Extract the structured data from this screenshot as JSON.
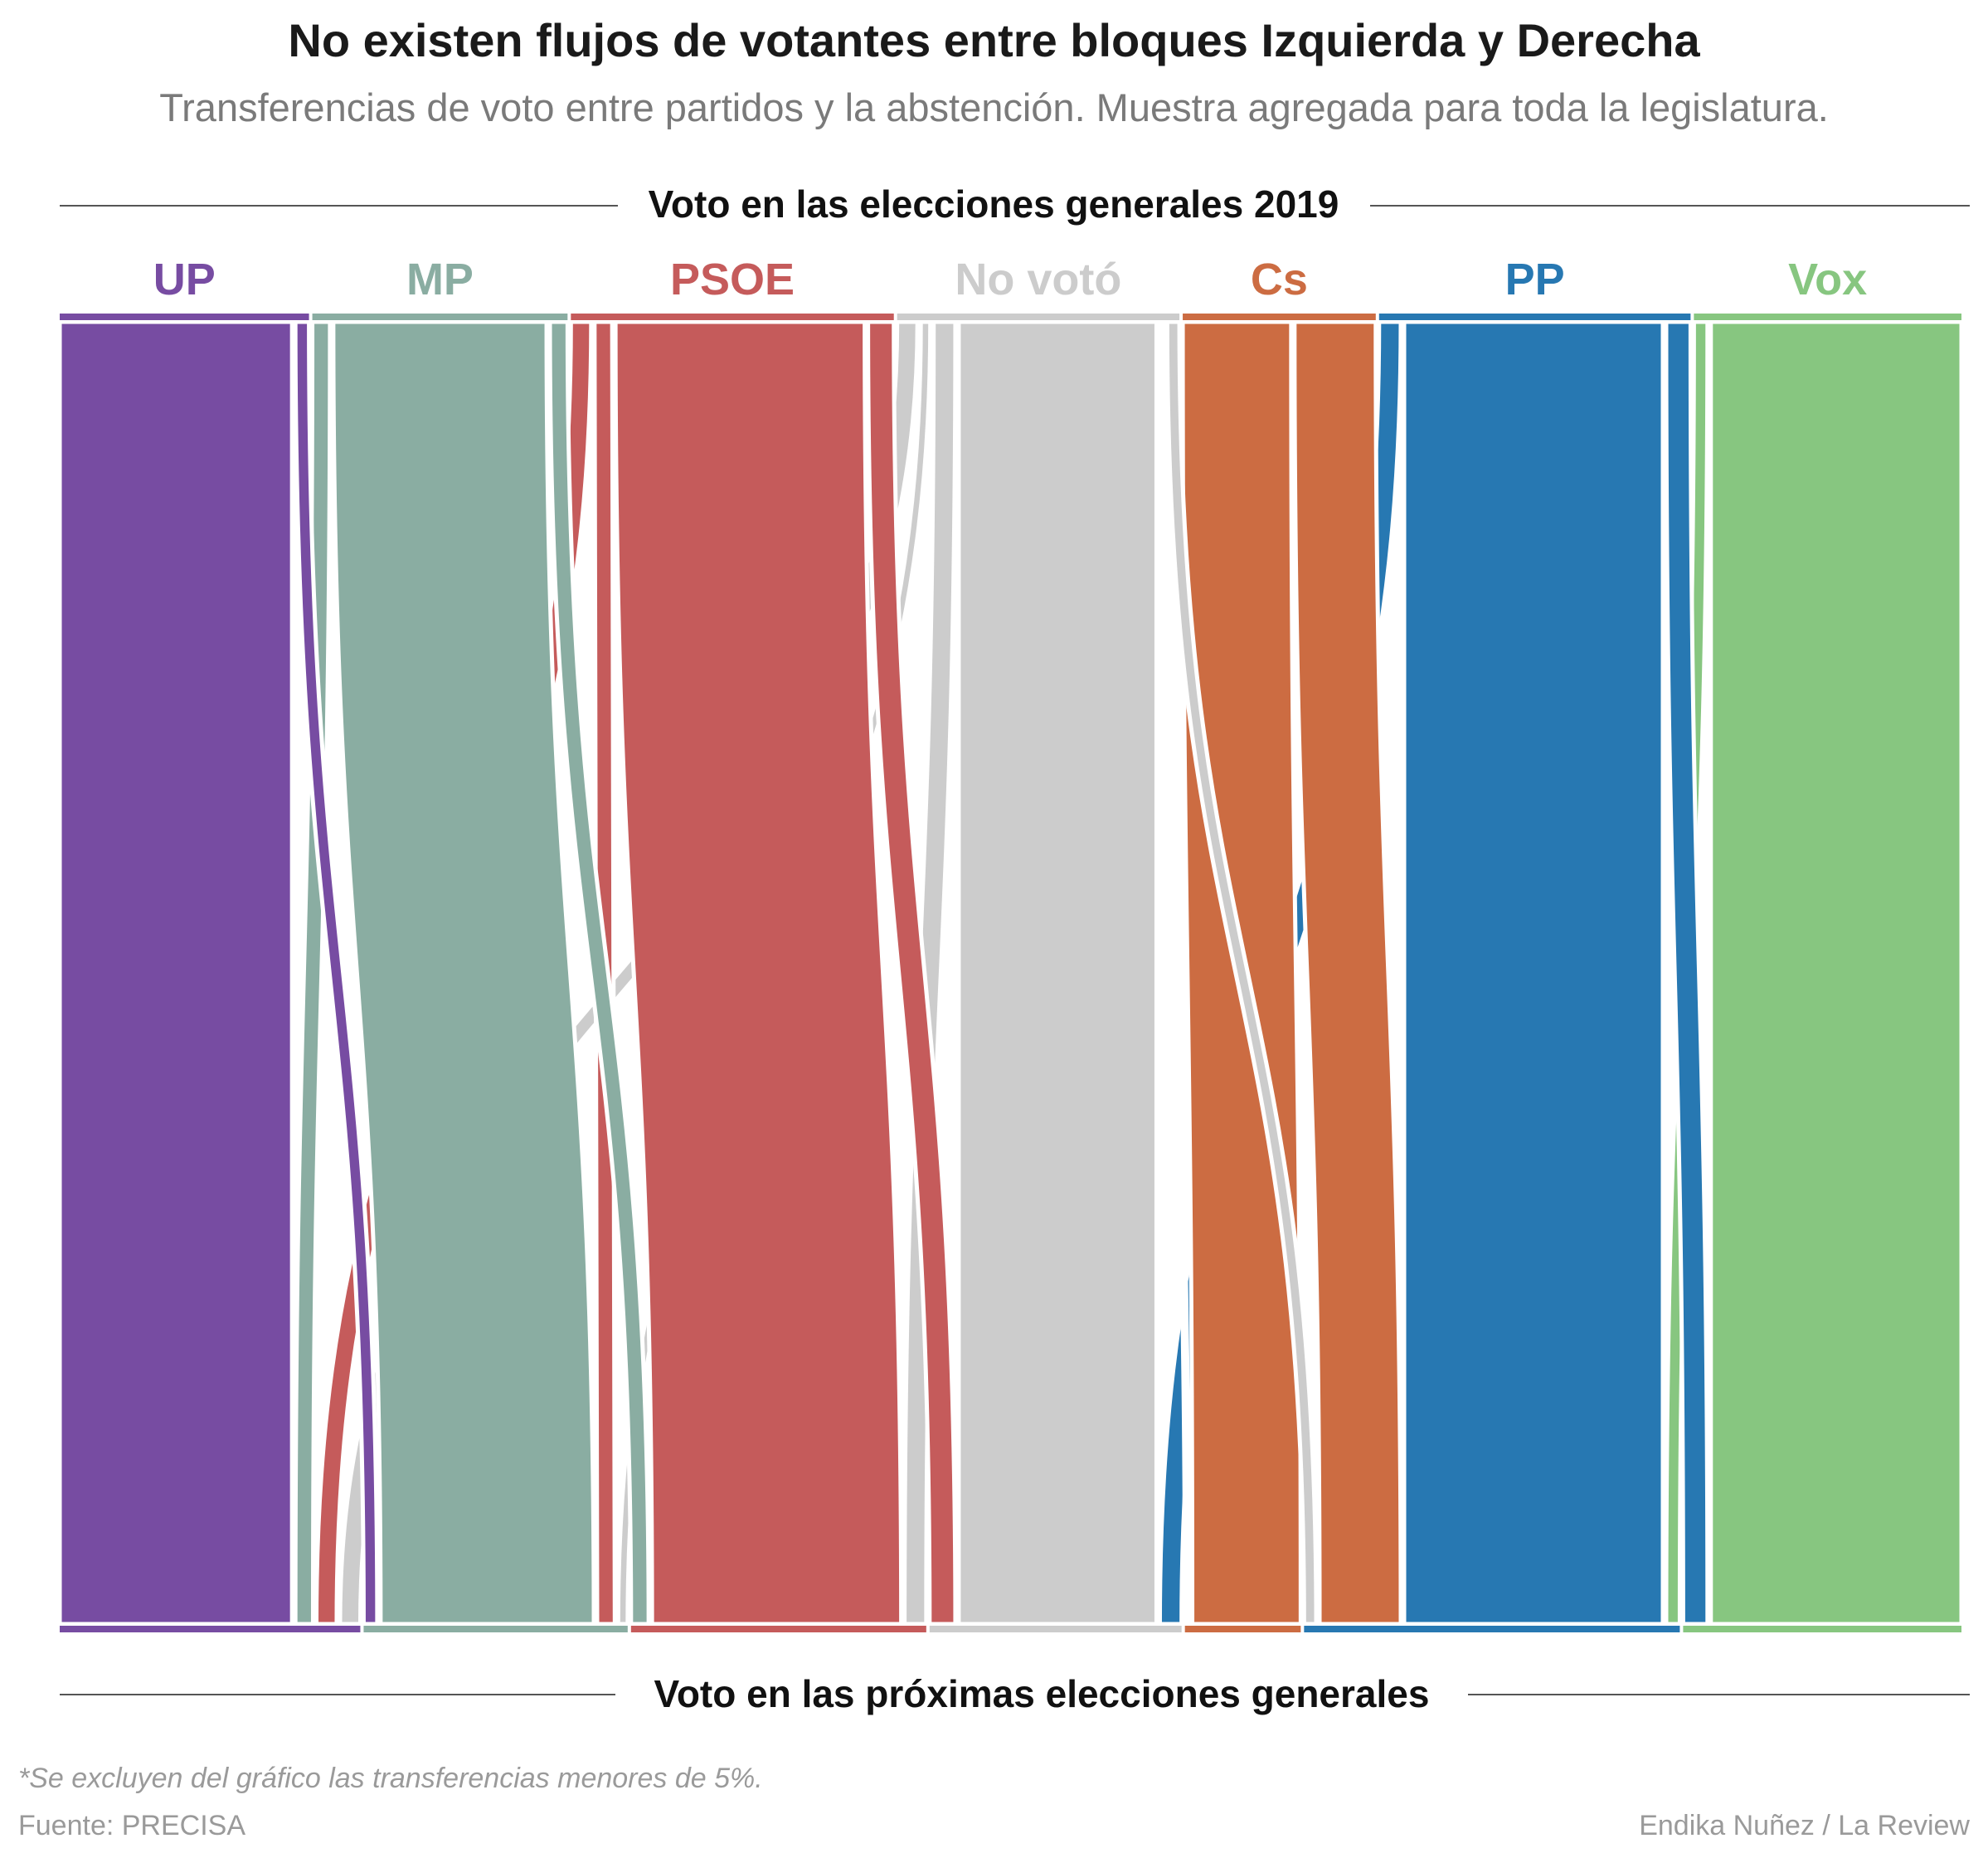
{
  "title": "No existen flujos de votantes entre bloques Izquierda y Derecha",
  "subtitle": "Transferencias de voto entre partidos y la abstención. Muestra agregada para toda la legislatura.",
  "top_axis_label": "Voto en las elecciones generales 2019",
  "bottom_axis_label": "Voto en las próximas elecciones generales",
  "footnote": "*Se excluyen del gráfico las transferencias menores de 5%.",
  "source": "Fuente: PRECISA",
  "credit": "Endika Nuñez / La Review",
  "chart_data": {
    "type": "sankey",
    "note": "Flow widths are shares of the total sample, estimated from the drawing",
    "nodes": [
      {
        "id": "UP",
        "label": "UP",
        "color": "#774CA2"
      },
      {
        "id": "MP",
        "label": "MP",
        "color": "#8AADA2"
      },
      {
        "id": "PSOE",
        "label": "PSOE",
        "color": "#C55B5B"
      },
      {
        "id": "NoVoto",
        "label": "No votó",
        "color": "#CCCCCC"
      },
      {
        "id": "Cs",
        "label": "Cs",
        "color": "#CC6C42"
      },
      {
        "id": "PP",
        "label": "PP",
        "color": "#2778B2"
      },
      {
        "id": "Vox",
        "label": "Vox",
        "color": "#87C680"
      }
    ],
    "top_order": [
      "UP",
      "MP",
      "PSOE",
      "NoVoto",
      "Cs",
      "PP",
      "Vox"
    ],
    "bottom_order": [
      "UP",
      "MP",
      "PSOE",
      "NoVoto",
      "Cs",
      "PP",
      "Vox"
    ],
    "flows": [
      {
        "from": "UP",
        "to": "UP",
        "value": 11.44
      },
      {
        "from": "MP",
        "to": "UP",
        "value": 0.87
      },
      {
        "from": "PSOE",
        "to": "UP",
        "value": 1.0
      },
      {
        "from": "NoVoto",
        "to": "UP",
        "value": 1.0
      },
      {
        "from": "UP",
        "to": "MP",
        "value": 0.67
      },
      {
        "from": "MP",
        "to": "MP",
        "value": 10.5
      },
      {
        "from": "PSOE",
        "to": "MP",
        "value": 0.87
      },
      {
        "from": "NoVoto",
        "to": "MP",
        "value": 0.47
      },
      {
        "from": "MP",
        "to": "PSOE",
        "value": 0.87
      },
      {
        "from": "PSOE",
        "to": "PSOE",
        "value": 12.27
      },
      {
        "from": "NoVoto",
        "to": "PSOE",
        "value": 1.07
      },
      {
        "from": "PSOE",
        "to": "NoVoto",
        "value": 1.27
      },
      {
        "from": "NoVoto",
        "to": "NoVoto",
        "value": 9.74
      },
      {
        "from": "PP",
        "to": "NoVoto",
        "value": 1.07
      },
      {
        "from": "NoVoto",
        "to": "Cs",
        "value": 0.2
      },
      {
        "from": "Cs",
        "to": "Cs",
        "value": 5.34
      },
      {
        "from": "Cs",
        "to": "PP",
        "value": 4.0
      },
      {
        "from": "Vox",
        "to": "PP",
        "value": 0.67
      },
      {
        "from": "PP",
        "to": "PP",
        "value": 12.74
      },
      {
        "from": "NoVoto",
        "to": "PP",
        "value": 0.6
      },
      {
        "from": "PP",
        "to": "Vox",
        "value": 1.2
      },
      {
        "from": "Vox",
        "to": "Vox",
        "value": 12.34
      }
    ]
  }
}
